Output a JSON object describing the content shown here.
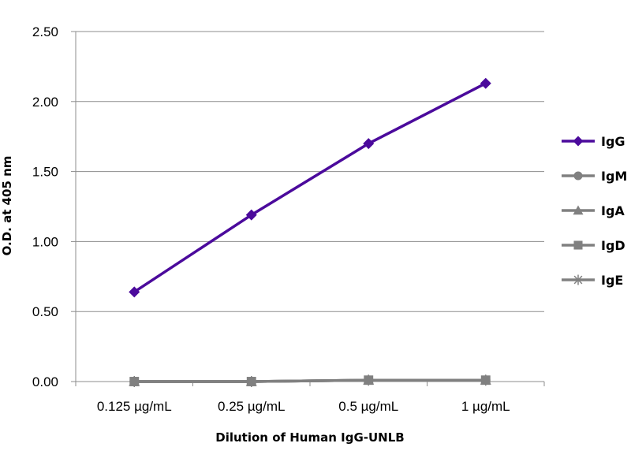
{
  "chart_data": {
    "type": "line",
    "title": "",
    "xlabel": "Dilution of Human IgG-UNLB",
    "ylabel": "O.D. at 405 nm",
    "categories": [
      "0.125 µg/mL",
      "0.25 µg/mL",
      "0.5 µg/mL",
      "1 µg/mL"
    ],
    "ylim": [
      0,
      2.5
    ],
    "yticks": [
      "0.00",
      "0.50",
      "1.00",
      "1.50",
      "2.00",
      "2.50"
    ],
    "grid": true,
    "legend_position": "right",
    "series": [
      {
        "name": "IgG",
        "values": [
          0.64,
          1.19,
          1.7,
          2.13
        ],
        "color": "#4b0a9c",
        "marker": "diamond"
      },
      {
        "name": "IgM",
        "values": [
          0.0,
          0.0,
          0.01,
          0.01
        ],
        "color": "#808080",
        "marker": "circle"
      },
      {
        "name": "IgA",
        "values": [
          0.0,
          0.0,
          0.01,
          0.01
        ],
        "color": "#808080",
        "marker": "triangle"
      },
      {
        "name": "IgD",
        "values": [
          0.0,
          0.0,
          0.01,
          0.01
        ],
        "color": "#808080",
        "marker": "square"
      },
      {
        "name": "IgE",
        "values": [
          0.0,
          0.0,
          0.01,
          0.01
        ],
        "color": "#808080",
        "marker": "star"
      }
    ]
  }
}
